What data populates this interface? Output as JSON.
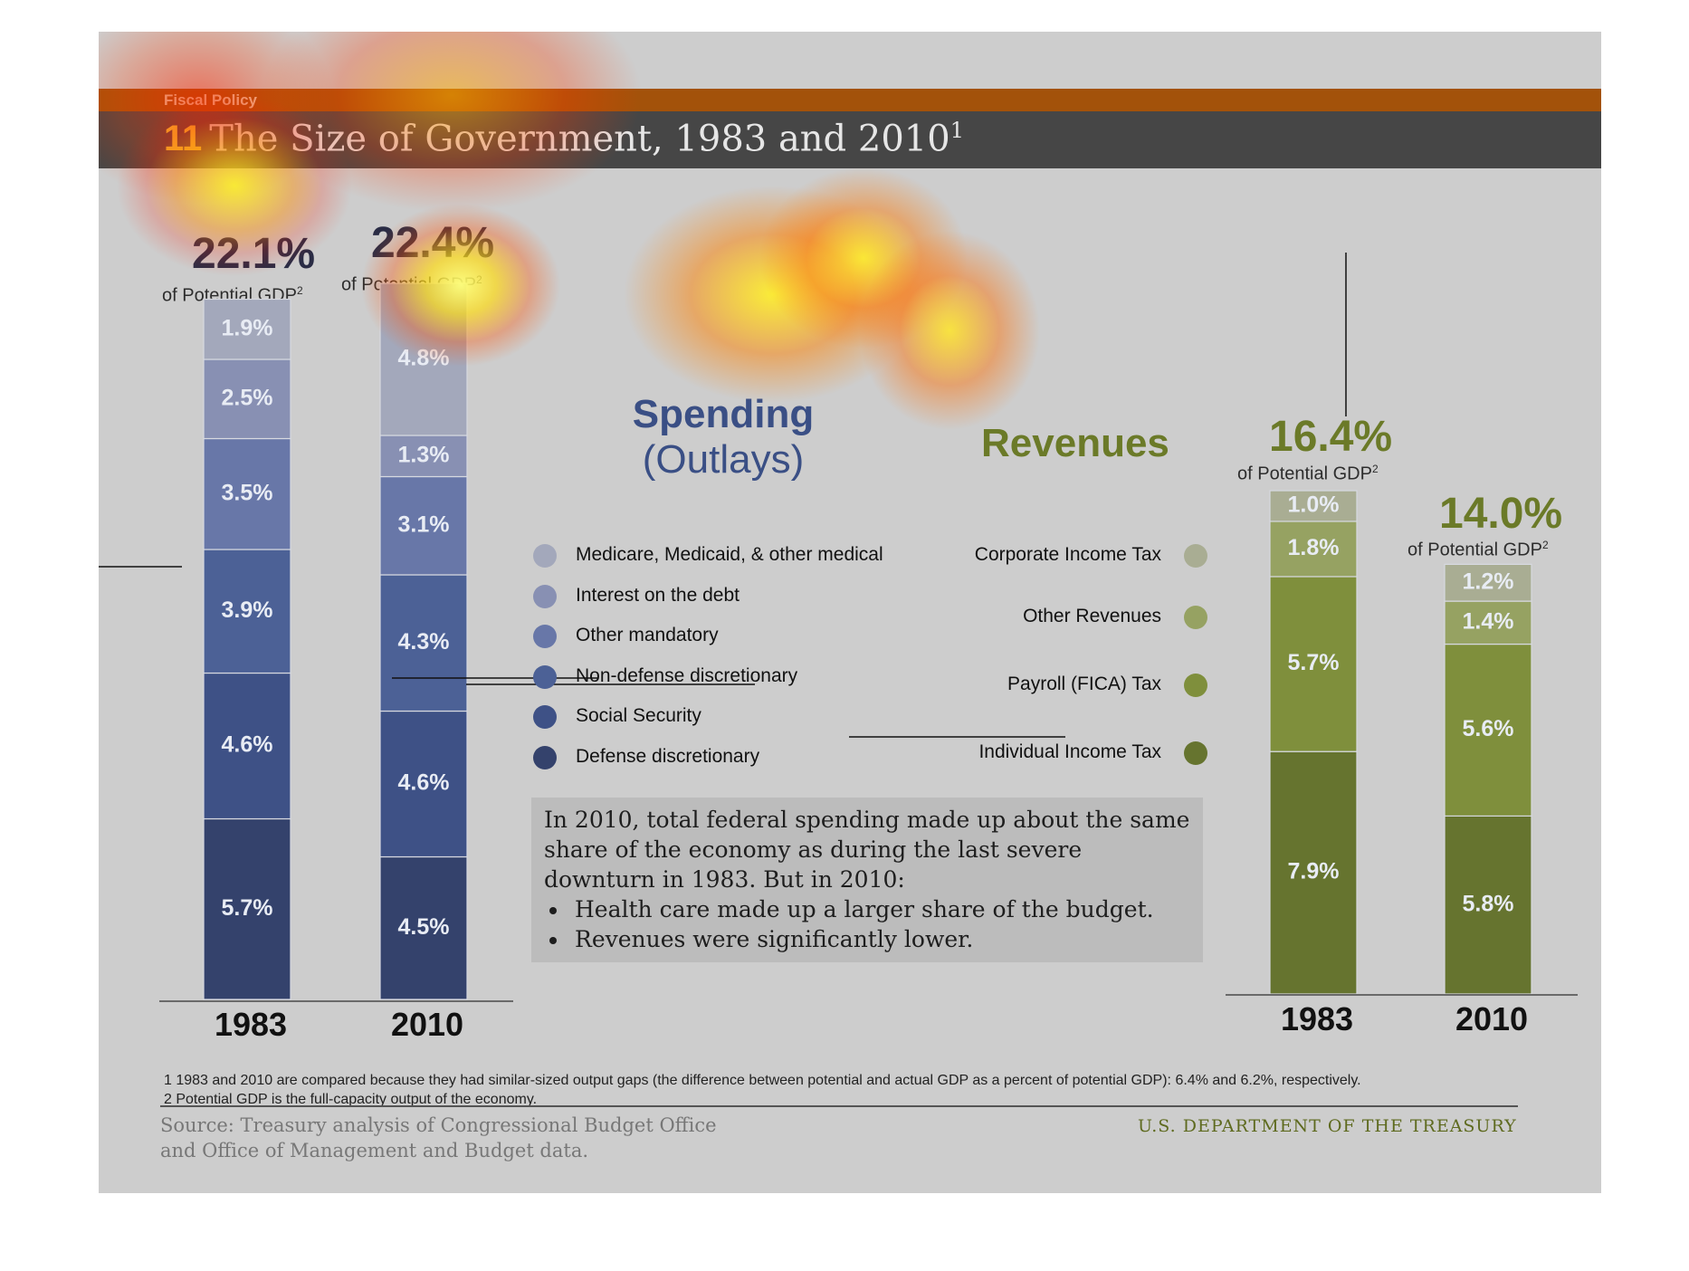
{
  "header": {
    "section": "Fiscal Policy",
    "number": "11",
    "title": "The Size of Government, 1983 and 2010",
    "title_sup": "1"
  },
  "spending": {
    "title_line1": "Spending",
    "title_line2": "(Outlays)",
    "total_1983": "22.1%",
    "total_2010": "22.4%",
    "gdp_note": "of Potential GDP",
    "gdp_sup": "2"
  },
  "revenues": {
    "title": "Revenues",
    "total_1983": "16.4%",
    "total_2010": "14.0%",
    "gdp_note": "of Potential GDP",
    "gdp_sup": "2"
  },
  "legend": {
    "spending": [
      {
        "label": "Medicare, Medicaid, & other medical",
        "color": "#a3a8bb"
      },
      {
        "label": "Interest on the debt",
        "color": "#8890b3"
      },
      {
        "label": "Other mandatory",
        "color": "#6877a8"
      },
      {
        "label": "Non-defense discretionary",
        "color": "#4c6196"
      },
      {
        "label": "Social Security",
        "color": "#3e5186"
      },
      {
        "label": "Defense discretionary",
        "color": "#34426c"
      }
    ],
    "revenues": [
      {
        "label": "Corporate Income Tax",
        "color": "#a9ad93"
      },
      {
        "label": "Other Revenues",
        "color": "#96a262"
      },
      {
        "label": "Payroll (FICA) Tax",
        "color": "#7f8f3c"
      },
      {
        "label": "Individual Income Tax",
        "color": "#66742f"
      }
    ]
  },
  "textbox": {
    "paragraph": "In 2010, total federal spending made up about the same share of the economy as during the last severe downturn in 1983. But in 2010:",
    "bullets": [
      "Health care made up a larger share of the budget.",
      "Revenues were significantly lower."
    ]
  },
  "footnotes": [
    "1 1983 and 2010 are compared because they had similar-sized output gaps (the difference between potential and actual GDP as a percent of potential GDP): 6.4% and 6.2%, respectively.",
    "2 Potential GDP is the full-capacity output of the economy."
  ],
  "source": [
    "Source: Treasury analysis of Congressional Budget Office",
    "and Office of Management and Budget data."
  ],
  "agency": "U.S. DEPARTMENT OF THE TREASURY",
  "chart_data": [
    {
      "type": "bar",
      "stacked": true,
      "title": "Spending (Outlays)",
      "categories": [
        "1983",
        "2010"
      ],
      "unit": "% of Potential GDP",
      "series": [
        {
          "name": "Defense discretionary",
          "values": [
            5.7,
            4.5
          ],
          "labels": [
            "5.7%",
            "4.5%"
          ],
          "color": "#34426c"
        },
        {
          "name": "Social Security",
          "values": [
            4.6,
            4.6
          ],
          "labels": [
            "4.6%",
            "4.6%"
          ],
          "color": "#3e5186"
        },
        {
          "name": "Non-defense discretionary",
          "values": [
            3.9,
            4.3
          ],
          "labels": [
            "3.9%",
            "4.3%"
          ],
          "color": "#4c6196"
        },
        {
          "name": "Other mandatory",
          "values": [
            3.5,
            3.1
          ],
          "labels": [
            "3.5%",
            "3.1%"
          ],
          "color": "#6877a8"
        },
        {
          "name": "Interest on the debt",
          "values": [
            2.5,
            1.3
          ],
          "labels": [
            "2.5%",
            "1.3%"
          ],
          "color": "#8890b3"
        },
        {
          "name": "Medicare, Medicaid, & other medical",
          "values": [
            1.9,
            4.8
          ],
          "labels": [
            "1.9%",
            "4.8%"
          ],
          "color": "#a3a8bb"
        }
      ],
      "totals": [
        22.1,
        22.4
      ],
      "grid": false
    },
    {
      "type": "bar",
      "stacked": true,
      "title": "Revenues",
      "categories": [
        "1983",
        "2010"
      ],
      "unit": "% of Potential GDP",
      "series": [
        {
          "name": "Individual Income Tax",
          "values": [
            7.9,
            5.8
          ],
          "labels": [
            "7.9%",
            "5.8%"
          ],
          "color": "#66742f"
        },
        {
          "name": "Payroll (FICA) Tax",
          "values": [
            5.7,
            5.6
          ],
          "labels": [
            "5.7%",
            "5.6%"
          ],
          "color": "#7f8f3c"
        },
        {
          "name": "Other Revenues",
          "values": [
            1.8,
            1.4
          ],
          "labels": [
            "1.8%",
            "1.4%"
          ],
          "color": "#96a262"
        },
        {
          "name": "Corporate Income Tax",
          "values": [
            1.0,
            1.2
          ],
          "labels": [
            "1.0%",
            "1.2%"
          ],
          "color": "#a9ad93"
        }
      ],
      "totals": [
        16.4,
        14.0
      ],
      "grid": false
    }
  ]
}
